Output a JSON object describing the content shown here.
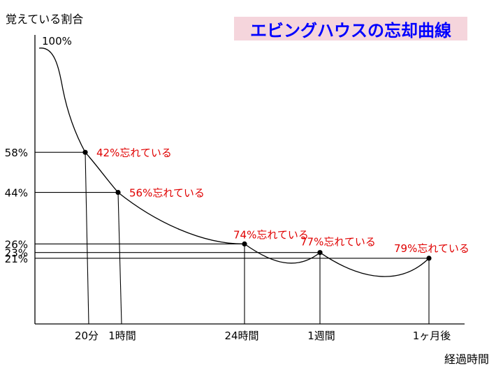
{
  "chart_data": {
    "type": "line",
    "title": "エビングハウスの忘却曲線",
    "ylabel": "覚えている割合",
    "xlabel": "経過時間",
    "start_label": "100%",
    "x_categories": [
      "20分",
      "1時間",
      "24時間",
      "1週間",
      "1ヶ月後"
    ],
    "points": [
      {
        "x": "20分",
        "retained": 58,
        "retained_label": "58%",
        "forgotten_label": "42%忘れている"
      },
      {
        "x": "1時間",
        "retained": 44,
        "retained_label": "44%",
        "forgotten_label": "56%忘れている"
      },
      {
        "x": "24時間",
        "retained": 26,
        "retained_label": "26%",
        "forgotten_label": "74%忘れている"
      },
      {
        "x": "1週間",
        "retained": 23,
        "retained_label": "23%",
        "forgotten_label": "77%忘れている"
      },
      {
        "x": "1ヶ月後",
        "retained": 21,
        "retained_label": "21%",
        "forgotten_label": "79%忘れている"
      }
    ],
    "ylim": [
      0,
      100
    ],
    "grid": false,
    "colors": {
      "curve": "#000000",
      "annotation": "#e00000",
      "title_text": "#0000ff",
      "title_background": "#f5d5dc"
    }
  }
}
